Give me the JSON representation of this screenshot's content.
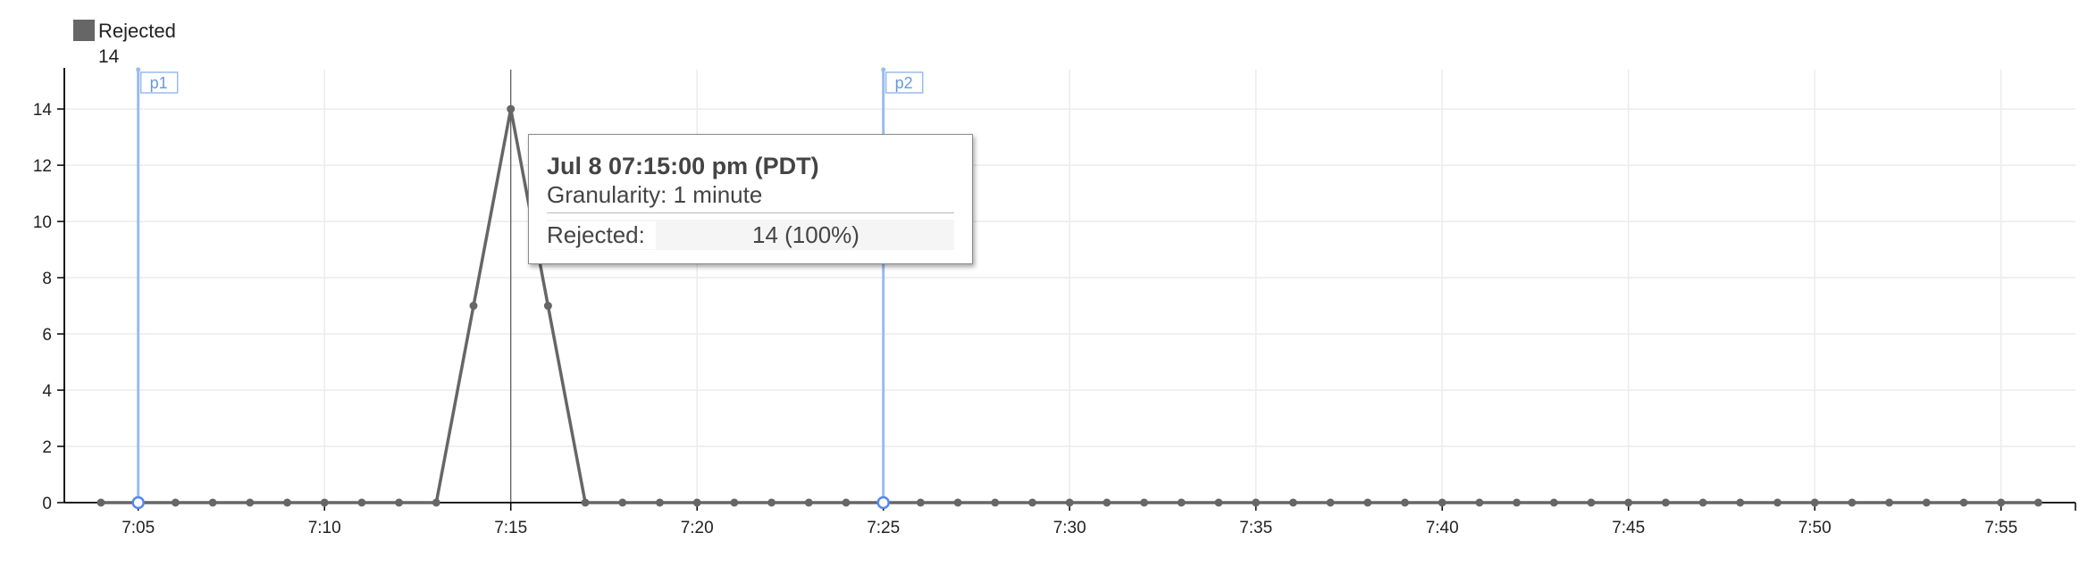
{
  "legend": {
    "series_name": "Rejected",
    "series_value": "14",
    "color": "#666666"
  },
  "chart_data": {
    "type": "line",
    "title": "",
    "xlabel": "",
    "ylabel": "",
    "x": [
      "7:04",
      "7:05",
      "7:06",
      "7:07",
      "7:08",
      "7:09",
      "7:10",
      "7:11",
      "7:12",
      "7:13",
      "7:14",
      "7:15",
      "7:16",
      "7:17",
      "7:18",
      "7:19",
      "7:20",
      "7:21",
      "7:22",
      "7:23",
      "7:24",
      "7:25",
      "7:26",
      "7:27",
      "7:28",
      "7:29",
      "7:30",
      "7:31",
      "7:32",
      "7:33",
      "7:34",
      "7:35",
      "7:36",
      "7:37",
      "7:38",
      "7:39",
      "7:40",
      "7:41",
      "7:42",
      "7:43",
      "7:44",
      "7:45",
      "7:46",
      "7:47",
      "7:48",
      "7:49",
      "7:50",
      "7:51",
      "7:52",
      "7:53",
      "7:54",
      "7:55",
      "7:56"
    ],
    "series": [
      {
        "name": "Rejected",
        "color": "#666666",
        "values": [
          0,
          0,
          0,
          0,
          0,
          0,
          0,
          0,
          0,
          0,
          7,
          14,
          7,
          0,
          0,
          0,
          0,
          0,
          0,
          0,
          0,
          0,
          0,
          0,
          0,
          0,
          0,
          0,
          0,
          0,
          0,
          0,
          0,
          0,
          0,
          0,
          0,
          0,
          0,
          0,
          0,
          0,
          0,
          0,
          0,
          0,
          0,
          0,
          0,
          0,
          0,
          0,
          0
        ]
      }
    ],
    "x_ticks": [
      "7:05",
      "7:10",
      "7:15",
      "7:20",
      "7:25",
      "7:30",
      "7:35",
      "7:40",
      "7:45",
      "7:50",
      "7:55"
    ],
    "y_ticks": [
      0,
      2,
      4,
      6,
      8,
      10,
      12,
      14
    ],
    "ylim": [
      0,
      15.4
    ],
    "grid": true,
    "legend_position": "top-left",
    "markers": [
      {
        "label": "p1",
        "x": "7:05",
        "color": "#99bbee"
      },
      {
        "label": "p2",
        "x": "7:25",
        "color": "#99bbee"
      }
    ],
    "crosshair_x": "7:15"
  },
  "tooltip": {
    "title": "Jul 8 07:15:00 pm (PDT)",
    "granularity": "Granularity: 1 minute",
    "series_label": "Rejected:",
    "series_value": "14 (100%)"
  }
}
